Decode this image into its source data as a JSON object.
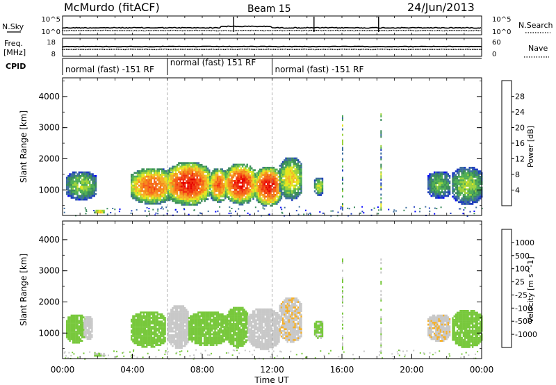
{
  "header": {
    "station": "McMurdo (fitACF)",
    "beam": "Beam 15",
    "date": "24/Jun/2013"
  },
  "noise_panel": {
    "left_label": "N.Sky",
    "right_label": "N.Search",
    "left_ticks": [
      "10^5",
      "10^0"
    ],
    "right_ticks": [
      "10^5",
      "10^0"
    ]
  },
  "freq_panel": {
    "left_label_1": "Freq.",
    "left_label_2": "[MHz]",
    "right_label": "Nave",
    "left_ticks": [
      "18",
      "8"
    ],
    "right_ticks": [
      "60",
      "0"
    ]
  },
  "cpid_panel": {
    "label": "CPID",
    "segments": [
      {
        "label": "normal (fast) -151 RF",
        "start": 0.0,
        "end": 6.0
      },
      {
        "label": "normal (fast) 151 RF",
        "start": 6.0,
        "end": 12.0
      },
      {
        "label": "normal (fast) -151 RF",
        "start": 12.0,
        "end": 24.0
      }
    ]
  },
  "x_axis": {
    "label": "Time UT",
    "ticks": [
      "00:00",
      "04:00",
      "08:00",
      "12:00",
      "16:00",
      "20:00",
      "00:00"
    ]
  },
  "colors": {
    "power_scale": [
      "#0000ff",
      "#1e3dbe",
      "#3e6f9e",
      "#3a8a5a",
      "#4fae55",
      "#9bd23c",
      "#e6e61e",
      "#f5b028",
      "#f58a1a",
      "#f5601a",
      "#f03010",
      "#e60000"
    ],
    "velocity_scale": [
      "#e60000",
      "#f5401a",
      "#f58a1a",
      "#f5b028",
      "#c8c8c8",
      "#78c83c",
      "#3e9a55",
      "#4a7d7a",
      "#2e62a8",
      "#1e3dbe"
    ]
  },
  "chart_data": [
    {
      "type": "heatmap",
      "title": "",
      "xlabel": "Time UT",
      "ylabel": "Slant Range [km]",
      "xlim": [
        0,
        24
      ],
      "ylim": [
        180,
        4600
      ],
      "yticks": [
        1000,
        2000,
        3000,
        4000
      ],
      "colorbar": {
        "label": "Power [dB]",
        "ticks": [
          "4",
          "8",
          "12",
          "16",
          "20",
          "24",
          "28"
        ],
        "range": [
          0,
          30
        ]
      },
      "echo_regions": [
        {
          "t": [
            0.2,
            1.9
          ],
          "r": [
            700,
            1650
          ],
          "peak_db": 14
        },
        {
          "t": [
            1.8,
            2.4
          ],
          "r": [
            250,
            420
          ],
          "peak_db": 20
        },
        {
          "t": [
            3.9,
            6.3
          ],
          "r": [
            560,
            1750
          ],
          "peak_db": 24
        },
        {
          "t": [
            6.0,
            8.4
          ],
          "r": [
            520,
            1950
          ],
          "peak_db": 28
        },
        {
          "t": [
            8.4,
            9.4
          ],
          "r": [
            620,
            1750
          ],
          "peak_db": 24
        },
        {
          "t": [
            9.3,
            11.0
          ],
          "r": [
            560,
            1900
          ],
          "peak_db": 28
        },
        {
          "t": [
            11.0,
            12.5
          ],
          "r": [
            480,
            1800
          ],
          "peak_db": 28
        },
        {
          "t": [
            12.4,
            13.7
          ],
          "r": [
            700,
            2100
          ],
          "peak_db": 18
        },
        {
          "t": [
            14.4,
            14.9
          ],
          "r": [
            850,
            1450
          ],
          "peak_db": 16
        },
        {
          "t": [
            20.9,
            22.2
          ],
          "r": [
            750,
            1650
          ],
          "peak_db": 12
        },
        {
          "t": [
            22.3,
            24.0
          ],
          "r": [
            550,
            1800
          ],
          "peak_db": 14
        }
      ]
    },
    {
      "type": "heatmap",
      "title": "",
      "xlabel": "Time UT",
      "ylabel": "Slant Range [km]",
      "xlim": [
        0,
        24
      ],
      "ylim": [
        180,
        4600
      ],
      "yticks": [
        1000,
        2000,
        3000,
        4000
      ],
      "colorbar": {
        "label": "Velocity [m s^-1]",
        "ticks": [
          "-1000",
          "-500",
          "-100",
          "-25",
          "25",
          "100",
          "500",
          "1000"
        ],
        "range": [
          -1500,
          1500
        ]
      },
      "echo_regions": [
        {
          "t": [
            0.2,
            1.3
          ],
          "r": [
            700,
            1650
          ],
          "velocity": 100
        },
        {
          "t": [
            1.2,
            1.7
          ],
          "r": [
            800,
            1600
          ],
          "velocity": -150
        },
        {
          "t": [
            1.8,
            2.4
          ],
          "r": [
            250,
            420
          ],
          "velocity": 30
        },
        {
          "t": [
            3.9,
            5.9
          ],
          "r": [
            560,
            1750
          ],
          "velocity": 150
        },
        {
          "t": [
            6.0,
            7.2
          ],
          "r": [
            520,
            1950
          ],
          "velocity": -150
        },
        {
          "t": [
            7.2,
            9.4
          ],
          "r": [
            600,
            1750
          ],
          "velocity": 100
        },
        {
          "t": [
            9.4,
            10.6
          ],
          "r": [
            560,
            1900
          ],
          "velocity": 150
        },
        {
          "t": [
            10.6,
            12.4
          ],
          "r": [
            500,
            1850
          ],
          "velocity": -200
        },
        {
          "t": [
            12.4,
            13.7
          ],
          "r": [
            700,
            2200
          ],
          "velocity": -250
        },
        {
          "t": [
            14.4,
            14.9
          ],
          "r": [
            850,
            1450
          ],
          "velocity": 80
        },
        {
          "t": [
            20.9,
            22.2
          ],
          "r": [
            750,
            1650
          ],
          "velocity": -250
        },
        {
          "t": [
            22.3,
            24.0
          ],
          "r": [
            550,
            1800
          ],
          "velocity": 150
        }
      ]
    }
  ]
}
